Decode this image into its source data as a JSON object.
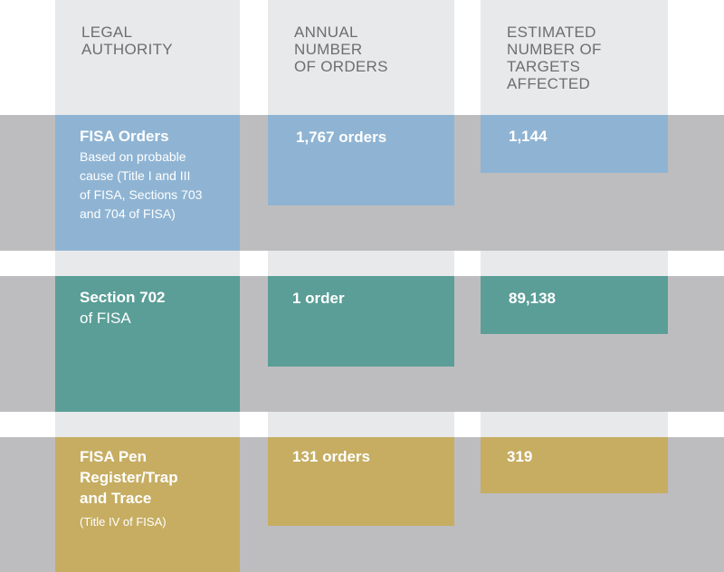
{
  "headers": {
    "legal_authority": "LEGAL\nAUTHORITY",
    "annual_orders": "ANNUAL\nNUMBER\nOF ORDERS",
    "targets_affected": "ESTIMATED\nNUMBER OF\nTARGETS\nAFFECTED"
  },
  "rows": [
    {
      "authority_title": "FISA Orders",
      "authority_detail": "Based on probable\ncause (Title I and III\nof FISA, Sections 703\nand 704 of FISA)",
      "orders_label": "1,767 orders",
      "targets_label": "1,144",
      "color": "#8fb4d3"
    },
    {
      "authority_title": "Section 702",
      "authority_detail": "of FISA",
      "orders_label": "1 order",
      "targets_label": "89,138",
      "color": "#5a9e97"
    },
    {
      "authority_title": "FISA Pen\nRegister/Trap\nand Trace",
      "authority_detail": "(Title IV of FISA)",
      "orders_label": "131 orders",
      "targets_label": "319",
      "color": "#c6ad62"
    }
  ],
  "chart_data": {
    "type": "table",
    "columns": [
      "LEGAL AUTHORITY",
      "ANNUAL NUMBER OF ORDERS",
      "ESTIMATED NUMBER OF TARGETS AFFECTED"
    ],
    "rows": [
      {
        "legal_authority": "FISA Orders",
        "annual_orders": 1767,
        "targets_affected": 1144
      },
      {
        "legal_authority": "Section 702 of FISA",
        "annual_orders": 1,
        "targets_affected": 89138
      },
      {
        "legal_authority": "FISA Pen Register/Trap and Trace",
        "annual_orders": 131,
        "targets_affected": 319
      }
    ]
  }
}
